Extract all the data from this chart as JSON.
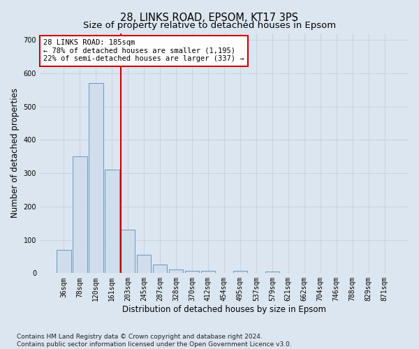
{
  "title": "28, LINKS ROAD, EPSOM, KT17 3PS",
  "subtitle": "Size of property relative to detached houses in Epsom",
  "xlabel": "Distribution of detached houses by size in Epsom",
  "ylabel": "Number of detached properties",
  "categories": [
    "36sqm",
    "78sqm",
    "120sqm",
    "161sqm",
    "203sqm",
    "245sqm",
    "287sqm",
    "328sqm",
    "370sqm",
    "412sqm",
    "454sqm",
    "495sqm",
    "537sqm",
    "579sqm",
    "621sqm",
    "662sqm",
    "704sqm",
    "746sqm",
    "788sqm",
    "829sqm",
    "871sqm"
  ],
  "values": [
    70,
    350,
    570,
    310,
    130,
    55,
    25,
    12,
    7,
    8,
    0,
    8,
    0,
    5,
    0,
    0,
    0,
    0,
    0,
    0,
    0
  ],
  "bar_color": "#cfdded",
  "bar_edge_color": "#5a8db5",
  "grid_color": "#c8d4e0",
  "background_color": "#dce6f0",
  "axes_bg_color": "#dce6f0",
  "vline_color": "#cc0000",
  "annotation_text": "28 LINKS ROAD: 185sqm\n← 78% of detached houses are smaller (1,195)\n22% of semi-detached houses are larger (337) →",
  "annotation_box_color": "white",
  "annotation_box_edge": "#cc0000",
  "ylim": [
    0,
    720
  ],
  "yticks": [
    0,
    100,
    200,
    300,
    400,
    500,
    600,
    700
  ],
  "title_fontsize": 10.5,
  "subtitle_fontsize": 9.5,
  "axis_label_fontsize": 8.5,
  "tick_fontsize": 7,
  "footer_fontsize": 6.5,
  "annotation_fontsize": 7.5,
  "footer": "Contains HM Land Registry data © Crown copyright and database right 2024.\nContains public sector information licensed under the Open Government Licence v3.0."
}
